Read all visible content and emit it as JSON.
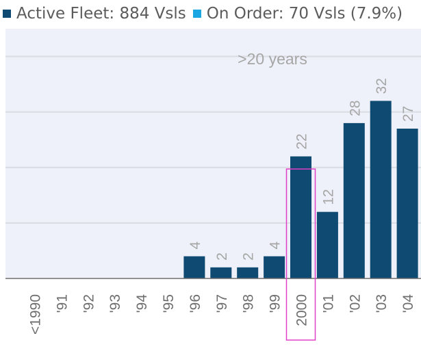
{
  "legend": {
    "active_label": "Active Fleet: 884 Vsls",
    "order_label": "On Order: 70 Vsls (7.9%)",
    "active_color": "#0e4a72",
    "order_color": "#1aa7e3"
  },
  "chart_data": {
    "type": "bar",
    "title": "",
    "xlabel": "",
    "ylabel": "",
    "categories": [
      "<1990",
      "'91",
      "'92",
      "'93",
      "'94",
      "'95",
      "'96",
      "'97",
      "'98",
      "'99",
      "2000",
      "'01",
      "'02",
      "'03",
      "'04"
    ],
    "series": [
      {
        "name": "Active Fleet: 884 Vsls",
        "values": [
          0,
          0,
          0,
          0,
          0,
          0,
          4,
          2,
          2,
          4,
          22,
          12,
          28,
          32,
          27
        ]
      }
    ],
    "ylim": [
      0,
      45
    ],
    "grid": true,
    "annotation": ">20 years",
    "highlight_category": "2000",
    "colors": {
      "plot_background": "#eef1f9",
      "highlight_box": "#e040c8",
      "grid": "#ffffff",
      "labels": "#a6a6a6",
      "axis": "#6e6e6e"
    }
  }
}
